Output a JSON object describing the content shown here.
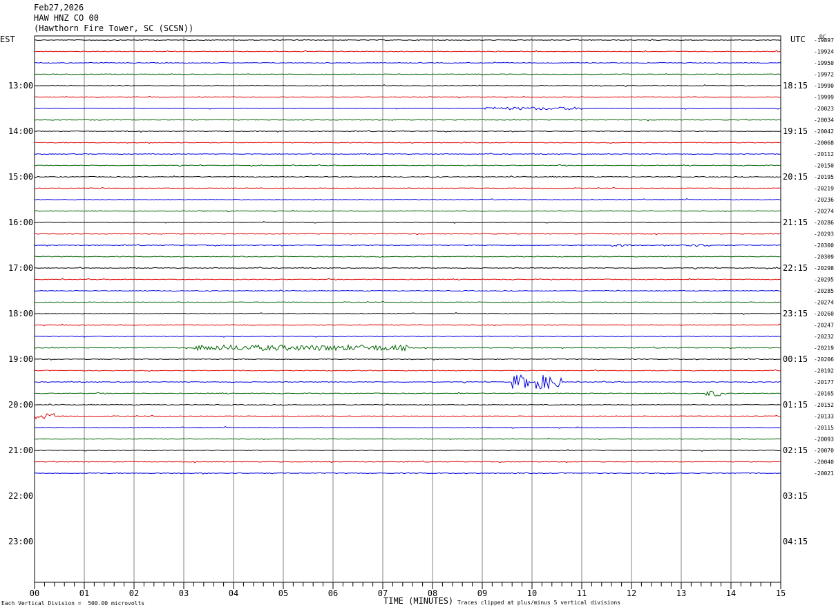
{
  "header": {
    "line1": "Feb27,2026",
    "line2": "HAW HNZ CO 00",
    "line3": "(Hawthorn Fire Tower, SC (SCSN))"
  },
  "axis_labels": {
    "left": "EST",
    "right": "UTC",
    "right_small": "DC"
  },
  "chart_data": {
    "type": "line",
    "title": "HAW HNZ CO 00",
    "xlabel": "TIME (MINUTES)",
    "x_ticks": [
      "00",
      "01",
      "02",
      "03",
      "04",
      "05",
      "06",
      "07",
      "08",
      "09",
      "10",
      "11",
      "12",
      "13",
      "14",
      "15"
    ],
    "xlim": [
      0,
      15
    ],
    "est_labels": [
      "13:00",
      "14:00",
      "15:00",
      "16:00",
      "17:00",
      "18:00",
      "19:00",
      "20:00",
      "21:00",
      "22:00",
      "23:00"
    ],
    "utc_labels": [
      "18:15",
      "19:15",
      "20:15",
      "21:15",
      "22:15",
      "23:15",
      "00:15",
      "01:15",
      "02:15",
      "03:15",
      "04:15"
    ],
    "dc_offsets": [
      "-19897",
      "-19924",
      "-19950",
      "-19972",
      "-19990",
      "-19999",
      "-20023",
      "-20034",
      "-20042",
      "-20068",
      "-20112",
      "-20150",
      "-20195",
      "-20219",
      "-20236",
      "-20274",
      "-20286",
      "-20293",
      "-20300",
      "-20309",
      "-20298",
      "-20295",
      "-20285",
      "-20274",
      "-20260",
      "-20247",
      "-20232",
      "-20219",
      "-20206",
      "-20192",
      "-20177",
      "-20165",
      "-20152",
      "-20133",
      "-20115",
      "-20093",
      "-20070",
      "-20040",
      "-20021"
    ],
    "trace_colors": [
      "#000000",
      "#e00000",
      "#0000e0",
      "#006400"
    ],
    "events": [
      {
        "trace": 6,
        "start_min": 9.0,
        "end_min": 11.0,
        "amp": 2
      },
      {
        "trace": 18,
        "start_min": 11.6,
        "end_min": 12.0,
        "amp": 2
      },
      {
        "trace": 18,
        "start_min": 13.0,
        "end_min": 13.6,
        "amp": 2
      },
      {
        "trace": 27,
        "start_min": 3.2,
        "end_min": 7.5,
        "amp": 4
      },
      {
        "trace": 30,
        "start_min": 9.6,
        "end_min": 10.6,
        "amp": 10
      },
      {
        "trace": 31,
        "start_min": 13.5,
        "end_min": 13.8,
        "amp": 4
      },
      {
        "trace": 33,
        "start_min": 0.0,
        "end_min": 0.4,
        "amp": 4
      }
    ]
  },
  "footer": {
    "scale": "Each Vertical Division =  500.00 microvolts",
    "clip": "Traces clipped at plus/minus 5 vertical divisions"
  },
  "colors": {
    "grid": "#808080",
    "background": "#ffffff"
  }
}
